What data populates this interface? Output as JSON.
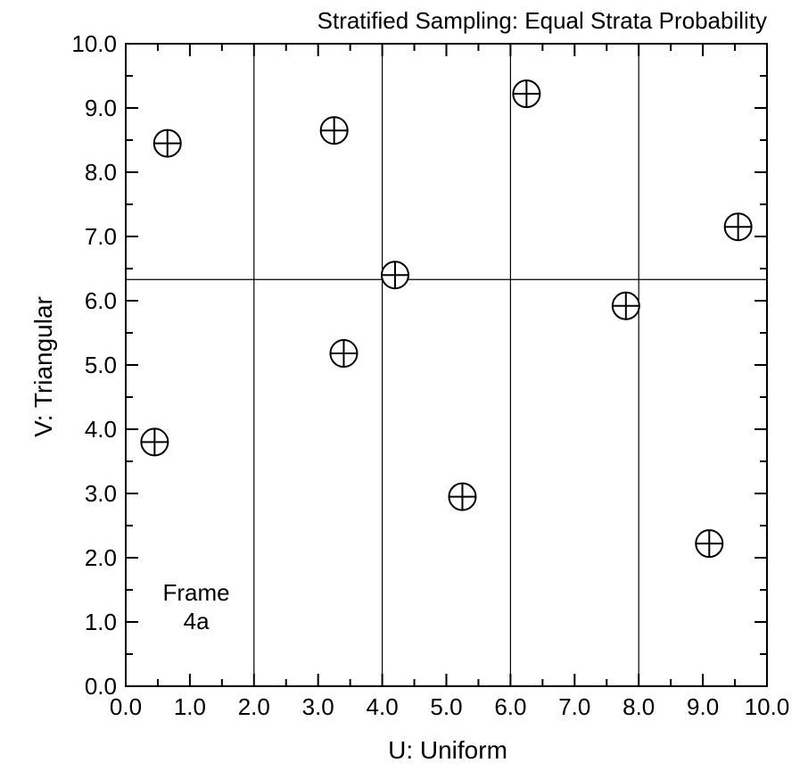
{
  "chart_data": {
    "type": "scatter",
    "title": "Stratified Sampling: Equal Strata Probability",
    "xlabel": "U: Uniform",
    "ylabel": "V: Triangular",
    "xlim": [
      0,
      10
    ],
    "ylim": [
      0,
      10
    ],
    "x_ticks": [
      0,
      1,
      2,
      3,
      4,
      5,
      6,
      7,
      8,
      9,
      10
    ],
    "y_ticks": [
      0,
      1,
      2,
      3,
      4,
      5,
      6,
      7,
      8,
      9,
      10
    ],
    "x_tick_labels": [
      "0.0",
      "1.0",
      "2.0",
      "3.0",
      "4.0",
      "5.0",
      "6.0",
      "7.0",
      "8.0",
      "9.0",
      "10.0"
    ],
    "y_tick_labels": [
      "0.0",
      "1.0",
      "2.0",
      "3.0",
      "4.0",
      "5.0",
      "6.0",
      "7.0",
      "8.0",
      "9.0",
      "10.0"
    ],
    "minor_ticks_per_major": 2,
    "grid": false,
    "marker": "circle-plus",
    "strata_lines": {
      "vertical_x": [
        2,
        4,
        6,
        8
      ],
      "horizontal_y": [
        6.33
      ]
    },
    "points": [
      {
        "x": 0.45,
        "y": 3.8
      },
      {
        "x": 0.65,
        "y": 8.45
      },
      {
        "x": 3.25,
        "y": 8.65
      },
      {
        "x": 3.4,
        "y": 5.18
      },
      {
        "x": 4.2,
        "y": 6.4
      },
      {
        "x": 5.25,
        "y": 2.95
      },
      {
        "x": 6.25,
        "y": 9.22
      },
      {
        "x": 7.8,
        "y": 5.92
      },
      {
        "x": 9.1,
        "y": 2.22
      },
      {
        "x": 9.55,
        "y": 7.15
      }
    ],
    "annotation": {
      "line1": "Frame",
      "line2": "4a",
      "x": 1.1,
      "y": 1.25
    }
  }
}
